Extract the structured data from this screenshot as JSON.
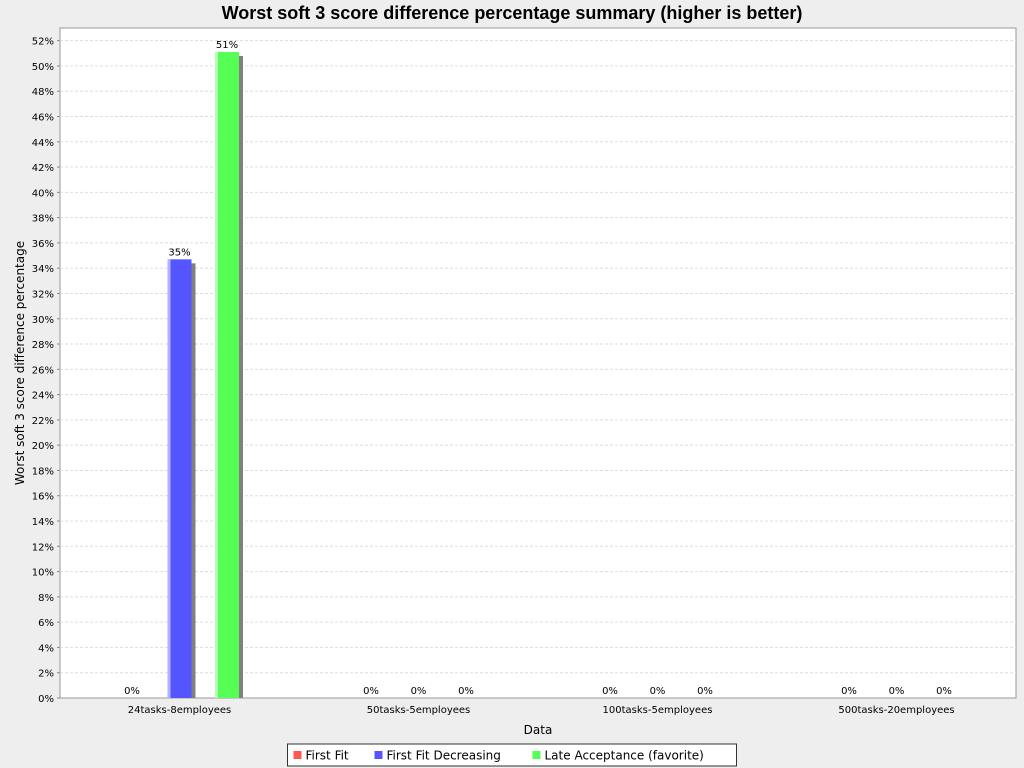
{
  "chart_data": {
    "type": "bar",
    "title": "Worst soft 3 score difference percentage summary (higher is better)",
    "xlabel": "Data",
    "ylabel": "Worst soft 3 score difference percentage",
    "categories": [
      "24tasks-8employees",
      "50tasks-5employees",
      "100tasks-5employees",
      "500tasks-20employees"
    ],
    "series": [
      {
        "name": "First Fit",
        "color": "#ff5555",
        "values": [
          0,
          0,
          0,
          0
        ],
        "labels": [
          "0%",
          "0%",
          "0%",
          "0%"
        ]
      },
      {
        "name": "First Fit Decreasing",
        "color": "#5555ff",
        "values": [
          34.7,
          0,
          0,
          0
        ],
        "labels": [
          "35%",
          "0%",
          "0%",
          "0%"
        ]
      },
      {
        "name": "Late Acceptance (favorite)",
        "color": "#55ff55",
        "values": [
          51.1,
          0,
          0,
          0
        ],
        "labels": [
          "51%",
          "0%",
          "0%",
          "0%"
        ]
      }
    ],
    "ylim": [
      0,
      53
    ],
    "yticks": [
      "0%",
      "2%",
      "4%",
      "6%",
      "8%",
      "10%",
      "12%",
      "14%",
      "16%",
      "18%",
      "20%",
      "22%",
      "24%",
      "26%",
      "28%",
      "30%",
      "32%",
      "34%",
      "36%",
      "38%",
      "40%",
      "42%",
      "44%",
      "46%",
      "48%",
      "50%",
      "52%"
    ],
    "grid": true,
    "legend_position": "bottom"
  }
}
